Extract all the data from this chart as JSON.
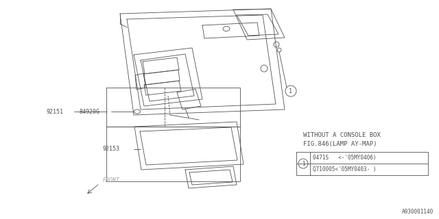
{
  "bg_color": "#ffffff",
  "line_color": "#505050",
  "title_text1": "WITHOUT A CONSOLE BOX",
  "title_text2": "FIG.846(LAMP AY-MAP)",
  "label_92151": "92151",
  "label_84920G": "84920G",
  "label_92153": "92153",
  "label_front": "FRONT",
  "part1_row1": "0471S   <-'05MY0406)",
  "part1_row2": "Q710005<'05MY0403- )",
  "watermark": "A930001140",
  "fig_width": 6.4,
  "fig_height": 3.2,
  "dpi": 100
}
